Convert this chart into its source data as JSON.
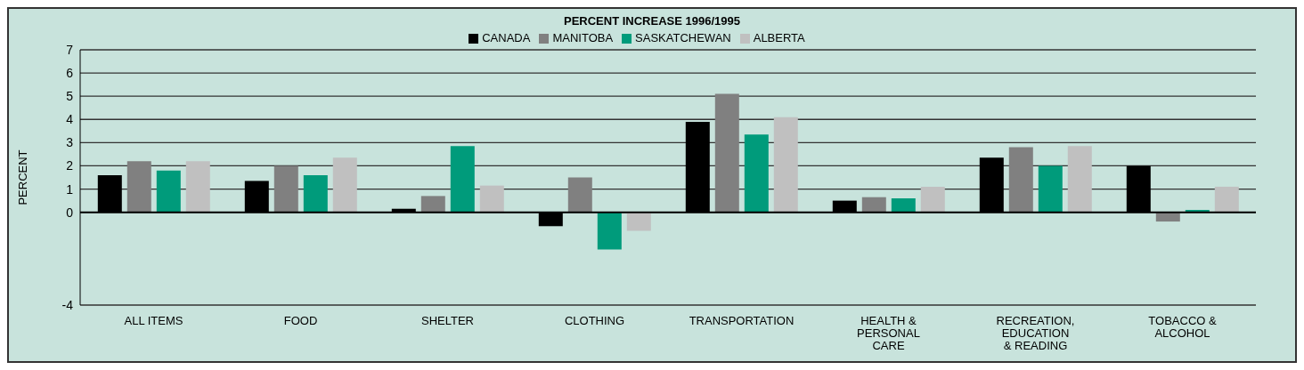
{
  "chart_data": {
    "type": "bar",
    "title": "PERCENT INCREASE 1996/1995",
    "ylabel": "PERCENT",
    "categories": [
      "ALL ITEMS",
      "FOOD",
      "SHELTER",
      "CLOTHING",
      "TRANSPORTATION",
      "HEALTH & PERSONAL CARE",
      "RECREATION, EDUCATION & READING",
      "TOBACCO & ALCOHOL"
    ],
    "series": [
      {
        "name": "CANADA",
        "color": "#000000",
        "values": [
          1.6,
          1.35,
          0.15,
          -0.6,
          3.9,
          0.5,
          2.35,
          2.0
        ]
      },
      {
        "name": "MANITOBA",
        "color": "#808080",
        "values": [
          2.2,
          2.0,
          0.7,
          1.5,
          5.1,
          0.65,
          2.8,
          -0.4
        ]
      },
      {
        "name": "SASKATCHEWAN",
        "color": "#009b7b",
        "values": [
          1.8,
          1.6,
          2.85,
          -1.6,
          3.35,
          0.6,
          2.0,
          0.1
        ]
      },
      {
        "name": "ALBERTA",
        "color": "#c0c0c0",
        "values": [
          2.2,
          2.35,
          1.15,
          -0.8,
          4.1,
          1.1,
          2.85,
          1.1
        ]
      }
    ],
    "ylim": [
      -4,
      7
    ],
    "yticks": [
      -4,
      0,
      1,
      2,
      3,
      4,
      5,
      6,
      7
    ],
    "grid": "y",
    "legend": "top"
  }
}
